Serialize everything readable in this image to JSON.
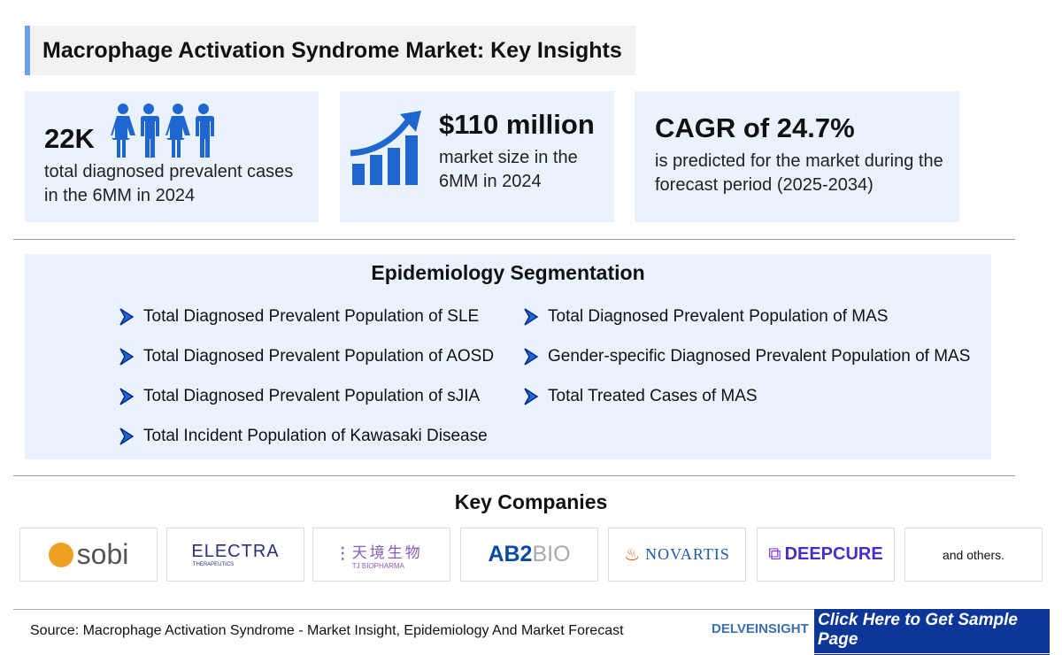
{
  "title": "Macrophage Activation Syndrome Market: Key Insights",
  "cards": [
    {
      "value": "22K",
      "text": "total diagnosed prevalent cases in the 6MM in 2024",
      "icon": "people-icon"
    },
    {
      "value": "$110 million",
      "text": "market size in the 6MM in 2024",
      "icon": "growth-chart-icon"
    },
    {
      "value": "CAGR of 24.7%",
      "text": "is predicted for the market during the forecast period (2025-2034)"
    }
  ],
  "epidemiology": {
    "heading": "Epidemiology Segmentation",
    "left": [
      "Total Diagnosed Prevalent Population of SLE",
      "Total Diagnosed Prevalent Population of AOSD",
      "Total Diagnosed Prevalent Population of sJIA",
      "Total Incident Population of Kawasaki Disease"
    ],
    "right": [
      "Total Diagnosed Prevalent Population of MAS",
      "Gender-specific Diagnosed Prevalent Population of MAS",
      "Total Treated Cases of MAS"
    ]
  },
  "companies": {
    "heading": "Key Companies",
    "logos": [
      "sobi",
      "ELECTRA",
      "THERAPEUTICS",
      "天境生物",
      "TJ BIOPHARMA",
      "AB2",
      "BIO",
      "NOVARTIS",
      "DEEPCURE"
    ],
    "others": "and others."
  },
  "footer": {
    "source": "Source: Macrophage Activation Syndrome - Market Insight, Epidemiology And Market Forecast",
    "brand": "DELVEINSIGHT",
    "cta": "Click Here to Get Sample Page"
  },
  "colors": {
    "accent": "#1f66d1",
    "card_bg": "#eaf2fd",
    "cta_bg": "#0c3799"
  }
}
